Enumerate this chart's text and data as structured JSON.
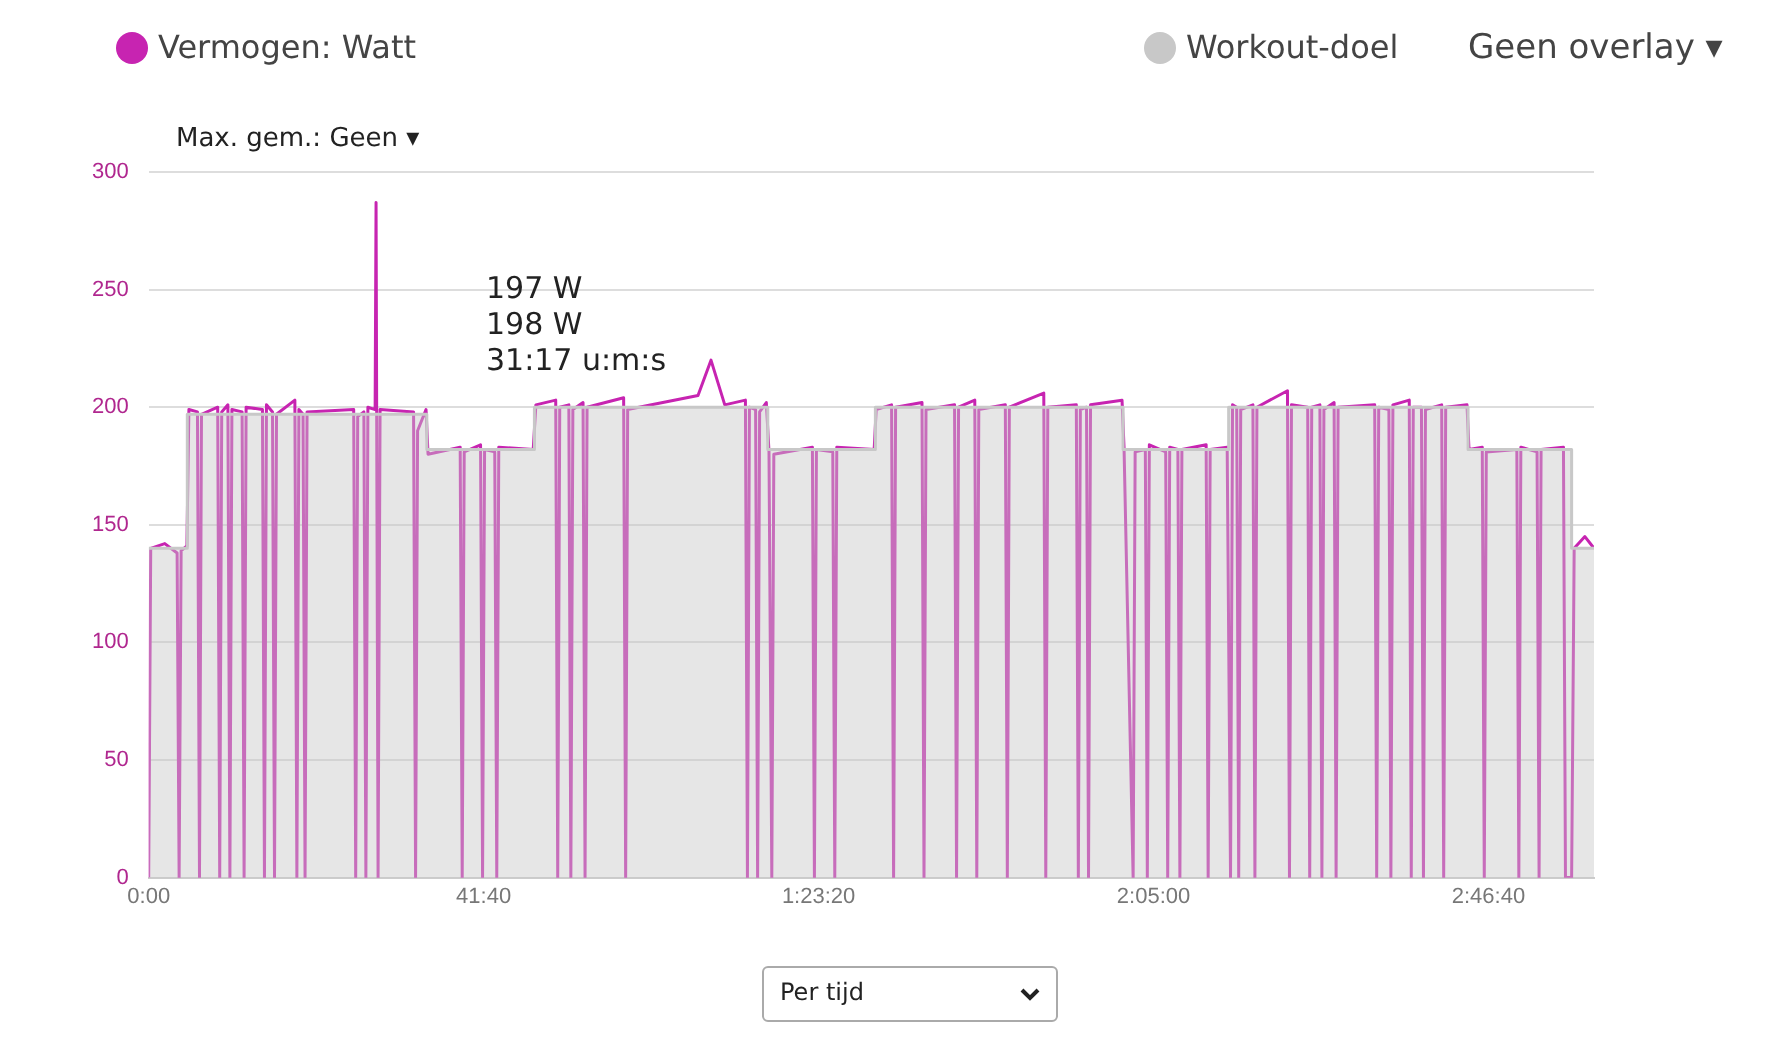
{
  "chart_data": {
    "type": "line",
    "xlim": [
      0,
      10788
    ],
    "xticks": [
      {
        "value": 0,
        "label": "0:00"
      },
      {
        "value": 2500,
        "label": "41:40"
      },
      {
        "value": 5000,
        "label": "1:23:20"
      },
      {
        "value": 7500,
        "label": "2:05:00"
      },
      {
        "value": 10000,
        "label": "2:46:40"
      }
    ],
    "ylim": [
      0,
      300
    ],
    "yticks": [
      0,
      50,
      100,
      150,
      200,
      250,
      300
    ],
    "grid": "y",
    "legend": "top",
    "marker": "none",
    "annotations": [
      "Max. gem.: Geen ▾",
      "Geen overlay ▾",
      "197 W",
      "198 W",
      "31:17 u:m:s",
      "Per tijd"
    ],
    "series": [
      {
        "name": "Workout-doel",
        "type": "area",
        "color": "#c8c8c8",
        "x": [
          0,
          288,
          288,
          2076,
          2076,
          2879,
          2879,
          4621,
          4621,
          5424,
          5424,
          7273,
          7273,
          8061,
          8061,
          9848,
          9848,
          10621,
          10621,
          10788
        ],
        "values": [
          140,
          140,
          197,
          197,
          182,
          182,
          200,
          200,
          182,
          182,
          200,
          200,
          182,
          182,
          200,
          200,
          182,
          182,
          140,
          140
        ]
      },
      {
        "name": "Vermogen: Watt",
        "color": "#c724b1",
        "x": [
          0,
          15,
          120,
          212,
          227,
          242,
          285,
          300,
          364,
          379,
          394,
          515,
          530,
          545,
          591,
          606,
          621,
          697,
          712,
          727,
          849,
          864,
          879,
          924,
          939,
          954,
          1091,
          1106,
          1121,
          1152,
          1167,
          1182,
          1530,
          1545,
          1560,
          1606,
          1621,
          1636,
          1690,
          1697,
          1712,
          1727,
          1977,
          1992,
          2007,
          2070,
          2085,
          2325,
          2340,
          2355,
          2477,
          2492,
          2507,
          2583,
          2598,
          2613,
          2870,
          2890,
          3038,
          3053,
          3068,
          3136,
          3151,
          3166,
          3242,
          3257,
          3272,
          3545,
          3560,
          3575,
          4100,
          4197,
          4300,
          4454,
          4469,
          4484,
          4530,
          4545,
          4560,
          4610,
          4630,
          4651,
          4666,
          4954,
          4969,
          4984,
          5106,
          5121,
          5136,
          5415,
          5430,
          5545,
          5560,
          5575,
          5772,
          5787,
          5802,
          6015,
          6030,
          6045,
          6166,
          6181,
          6196,
          6394,
          6409,
          6424,
          6681,
          6696,
          6711,
          6924,
          6939,
          6954,
          7000,
          7015,
          7030,
          7265,
          7280,
          7348,
          7363,
          7439,
          7454,
          7469,
          7591,
          7606,
          7621,
          7682,
          7697,
          7712,
          7893,
          7908,
          7923,
          8050,
          8075,
          8090,
          8121,
          8136,
          8151,
          8242,
          8257,
          8272,
          8500,
          8515,
          8530,
          8651,
          8666,
          8681,
          8742,
          8757,
          8772,
          8848,
          8863,
          8878,
          9151,
          9166,
          9181,
          9257,
          9272,
          9287,
          9409,
          9424,
          9439,
          9500,
          9515,
          9530,
          9651,
          9666,
          9681,
          9840,
          9855,
          9954,
          9969,
          9984,
          10212,
          10227,
          10242,
          10363,
          10378,
          10393,
          10560,
          10575,
          10621,
          10640,
          10720,
          10788
        ],
        "values": [
          0,
          140,
          142,
          138,
          0,
          139,
          141,
          199,
          198,
          0,
          197,
          200,
          0,
          198,
          201,
          0,
          199,
          198,
          0,
          200,
          199,
          0,
          201,
          198,
          0,
          197,
          203,
          0,
          199,
          197,
          0,
          198,
          199,
          0,
          196,
          198,
          0,
          200,
          199,
          287,
          0,
          199,
          198,
          0,
          190,
          199,
          180,
          183,
          0,
          181,
          184,
          0,
          182,
          181,
          0,
          183,
          182,
          201,
          203,
          0,
          200,
          201,
          0,
          199,
          202,
          0,
          200,
          204,
          0,
          199,
          205,
          220,
          201,
          203,
          0,
          200,
          199,
          0,
          198,
          202,
          181,
          0,
          180,
          183,
          0,
          182,
          181,
          0,
          183,
          182,
          199,
          201,
          0,
          200,
          202,
          0,
          199,
          201,
          0,
          200,
          203,
          0,
          199,
          201,
          0,
          200,
          206,
          0,
          200,
          201,
          0,
          199,
          200,
          0,
          201,
          203,
          183,
          0,
          181,
          182,
          0,
          184,
          181,
          0,
          183,
          182,
          0,
          182,
          184,
          0,
          182,
          183,
          0,
          201,
          200,
          0,
          199,
          201,
          0,
          200,
          207,
          0,
          201,
          200,
          0,
          200,
          201,
          0,
          199,
          202,
          0,
          200,
          201,
          0,
          200,
          199,
          0,
          201,
          203,
          0,
          200,
          200,
          0,
          199,
          201,
          0,
          200,
          201,
          182,
          183,
          0,
          181,
          182,
          0,
          183,
          181,
          0,
          182,
          183,
          0,
          0,
          140,
          145,
          140
        ]
      }
    ]
  }
}
